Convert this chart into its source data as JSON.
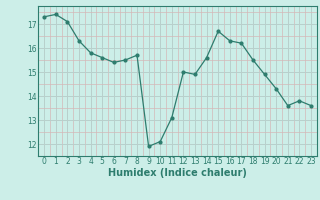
{
  "x": [
    0,
    1,
    2,
    3,
    4,
    5,
    6,
    7,
    8,
    9,
    10,
    11,
    12,
    13,
    14,
    15,
    16,
    17,
    18,
    19,
    20,
    21,
    22,
    23
  ],
  "y": [
    17.3,
    17.4,
    17.1,
    16.3,
    15.8,
    15.6,
    15.4,
    15.5,
    15.7,
    11.9,
    12.1,
    13.1,
    15.0,
    14.9,
    15.6,
    16.7,
    16.3,
    16.2,
    15.5,
    14.9,
    14.3,
    13.6,
    13.8,
    13.6
  ],
  "line_color": "#2e7d6e",
  "marker": "o",
  "markersize": 2.0,
  "linewidth": 0.9,
  "bg_color": "#cceee8",
  "xlabel": "Humidex (Indice chaleur)",
  "xlabel_fontsize": 7,
  "ylabel_ticks": [
    12,
    13,
    14,
    15,
    16,
    17
  ],
  "ylim": [
    11.5,
    17.75
  ],
  "xlim": [
    -0.5,
    23.5
  ],
  "xtick_labels": [
    "0",
    "1",
    "2",
    "3",
    "4",
    "5",
    "6",
    "7",
    "8",
    "9",
    "10",
    "11",
    "12",
    "13",
    "14",
    "15",
    "16",
    "17",
    "18",
    "19",
    "20",
    "21",
    "22",
    "23"
  ],
  "tick_fontsize": 5.5,
  "major_grid_color": "#b8d0cc",
  "minor_grid_color": "#d4b8b8"
}
